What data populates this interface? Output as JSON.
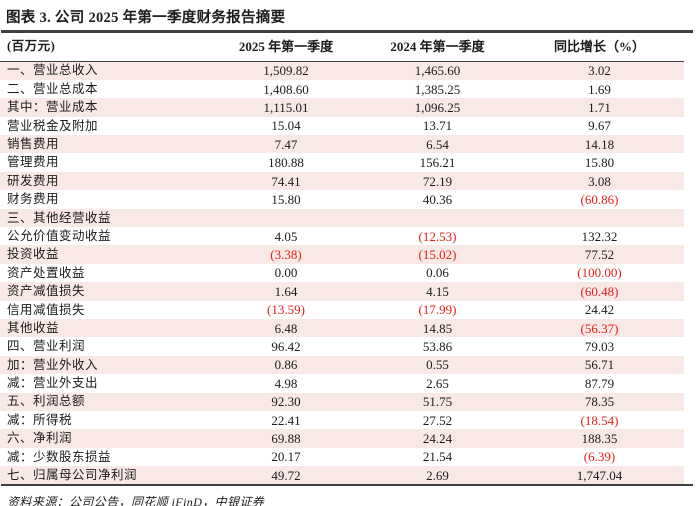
{
  "title": "图表 3. 公司 2025 年第一季度财务报告摘要",
  "source_note": "资料来源：公司公告，同花顺 iFinD，中银证券",
  "colors": {
    "stripe_pink": "#f9e9e6",
    "negative_red": "#e32119",
    "rule_dark": "#3f3f3f",
    "text": "#1c1c1c"
  },
  "table": {
    "columns": [
      "(百万元)",
      "2025 年第一季度",
      "2024 年第一季度",
      "同比增长（%）"
    ],
    "rows": [
      {
        "label": "一、营业总收入",
        "q1_2025": "1,509.82",
        "q1_2024": "1,465.60",
        "yoy": "3.02"
      },
      {
        "label": "二、营业总成本",
        "q1_2025": "1,408.60",
        "q1_2024": "1,385.25",
        "yoy": "1.69"
      },
      {
        "label": "其中：营业成本",
        "q1_2025": "1,115.01",
        "q1_2024": "1,096.25",
        "yoy": "1.71"
      },
      {
        "label": "营业税金及附加",
        "q1_2025": "15.04",
        "q1_2024": "13.71",
        "yoy": "9.67"
      },
      {
        "label": "销售费用",
        "q1_2025": "7.47",
        "q1_2024": "6.54",
        "yoy": "14.18"
      },
      {
        "label": "管理费用",
        "q1_2025": "180.88",
        "q1_2024": "156.21",
        "yoy": "15.80"
      },
      {
        "label": "研发费用",
        "q1_2025": "74.41",
        "q1_2024": "72.19",
        "yoy": "3.08"
      },
      {
        "label": "财务费用",
        "q1_2025": "15.80",
        "q1_2024": "40.36",
        "yoy": "(60.86)"
      },
      {
        "label": "三、其他经营收益",
        "q1_2025": "",
        "q1_2024": "",
        "yoy": ""
      },
      {
        "label": "公允价值变动收益",
        "q1_2025": "4.05",
        "q1_2024": "(12.53)",
        "yoy": "132.32"
      },
      {
        "label": "投资收益",
        "q1_2025": "(3.38)",
        "q1_2024": "(15.02)",
        "yoy": "77.52"
      },
      {
        "label": "资产处置收益",
        "q1_2025": "0.00",
        "q1_2024": "0.06",
        "yoy": "(100.00)"
      },
      {
        "label": "资产减值损失",
        "q1_2025": "1.64",
        "q1_2024": "4.15",
        "yoy": "(60.48)"
      },
      {
        "label": "信用减值损失",
        "q1_2025": "(13.59)",
        "q1_2024": "(17.99)",
        "yoy": "24.42"
      },
      {
        "label": "其他收益",
        "q1_2025": "6.48",
        "q1_2024": "14.85",
        "yoy": "(56.37)"
      },
      {
        "label": "四、营业利润",
        "q1_2025": "96.42",
        "q1_2024": "53.86",
        "yoy": "79.03"
      },
      {
        "label": "加：营业外收入",
        "q1_2025": "0.86",
        "q1_2024": "0.55",
        "yoy": "56.71"
      },
      {
        "label": "减：营业外支出",
        "q1_2025": "4.98",
        "q1_2024": "2.65",
        "yoy": "87.79"
      },
      {
        "label": "五、利润总额",
        "q1_2025": "92.30",
        "q1_2024": "51.75",
        "yoy": "78.35"
      },
      {
        "label": "减：所得税",
        "q1_2025": "22.41",
        "q1_2024": "27.52",
        "yoy": "(18.54)"
      },
      {
        "label": "六、净利润",
        "q1_2025": "69.88",
        "q1_2024": "24.24",
        "yoy": "188.35"
      },
      {
        "label": "减：少数股东损益",
        "q1_2025": "20.17",
        "q1_2024": "21.54",
        "yoy": "(6.39)"
      },
      {
        "label": "七、归属母公司净利润",
        "q1_2025": "49.72",
        "q1_2024": "2.69",
        "yoy": "1,747.04"
      }
    ]
  }
}
